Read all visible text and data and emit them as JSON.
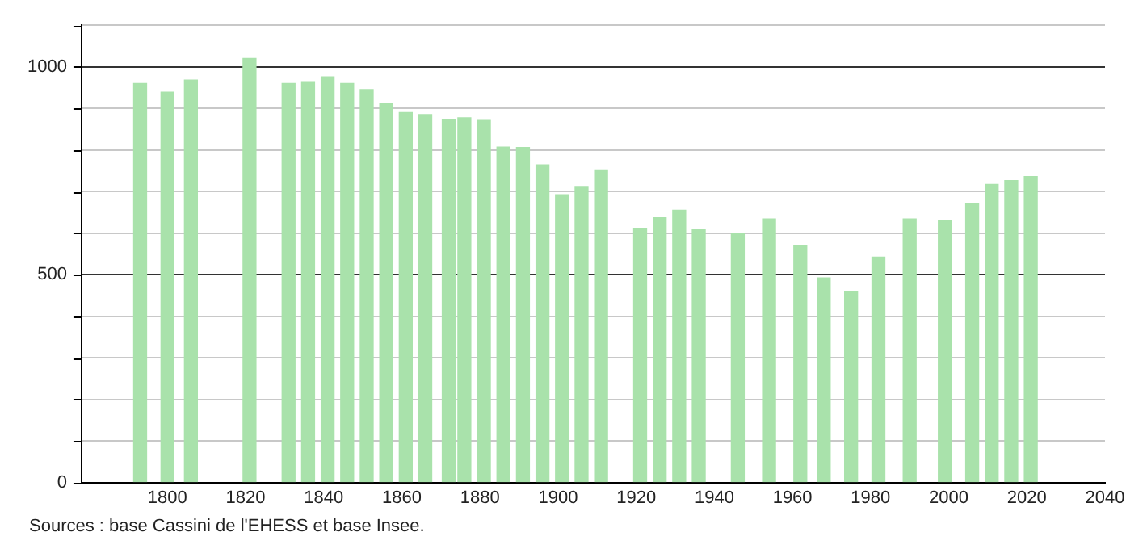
{
  "chart_data": {
    "type": "bar",
    "x": [
      1793,
      1800,
      1806,
      1821,
      1831,
      1836,
      1841,
      1846,
      1851,
      1856,
      1861,
      1866,
      1872,
      1876,
      1881,
      1886,
      1891,
      1896,
      1901,
      1906,
      1911,
      1921,
      1926,
      1931,
      1936,
      1946,
      1954,
      1962,
      1968,
      1975,
      1982,
      1990,
      1999,
      2006,
      2011,
      2016,
      2021
    ],
    "values": [
      960,
      939,
      968,
      1020,
      960,
      964,
      976,
      960,
      945,
      911,
      890,
      885,
      874,
      877,
      871,
      807,
      806,
      764,
      692,
      710,
      752,
      611,
      637,
      655,
      608,
      600,
      634,
      569,
      492,
      459,
      542,
      634,
      630,
      672,
      717,
      726,
      736
    ],
    "color": "#a9e2ab",
    "xlim": [
      1778,
      2040
    ],
    "xticks": [
      1800,
      1820,
      1840,
      1860,
      1880,
      1900,
      1920,
      1940,
      1960,
      1980,
      2000,
      2020,
      2040
    ],
    "ylim": [
      0,
      1100
    ],
    "yticks": [
      0,
      {
        "value": 100,
        "label": null
      },
      {
        "value": 200,
        "label": null
      },
      {
        "value": 300,
        "label": null
      },
      {
        "value": 400,
        "label": null
      },
      500,
      {
        "value": 600,
        "label": null
      },
      {
        "value": 700,
        "label": null
      },
      {
        "value": 800,
        "label": null
      },
      {
        "value": 900,
        "label": null
      },
      1000,
      {
        "value": 1100,
        "label": null
      }
    ],
    "grid": "y",
    "legend": false,
    "annotations": [
      "Sources : base Cassini de l'EHESS et base Insee."
    ]
  }
}
